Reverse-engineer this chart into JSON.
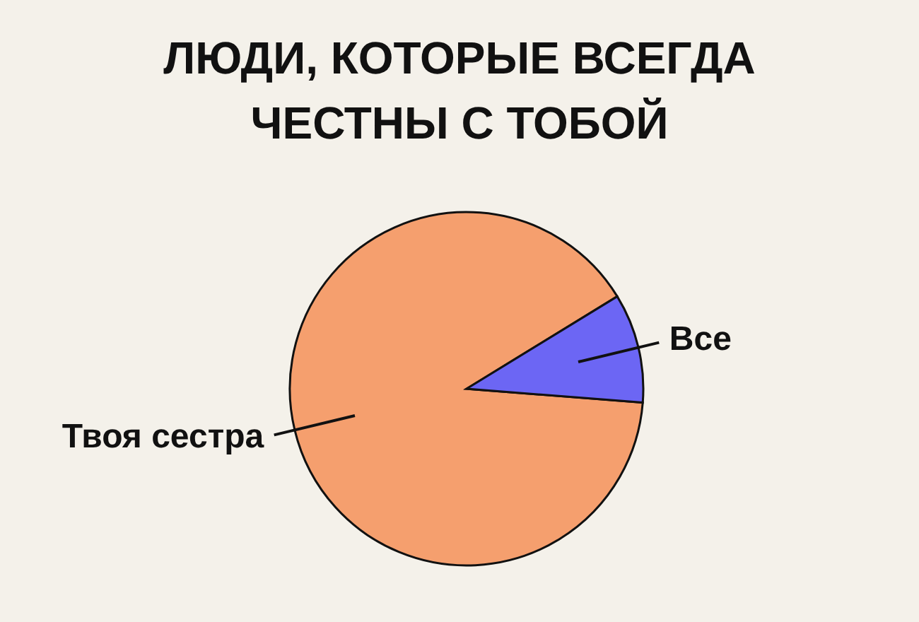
{
  "chart_data": {
    "type": "pie",
    "title": "ЛЮДИ, КОТОРЫЕ ВСЕГДА\nЧЕСТНЫ С ТОБОЙ",
    "categories": [
      "Твоя сестра",
      "Все"
    ],
    "values": [
      90,
      10
    ],
    "colors": [
      "#f59f6e",
      "#6c66f4"
    ]
  }
}
